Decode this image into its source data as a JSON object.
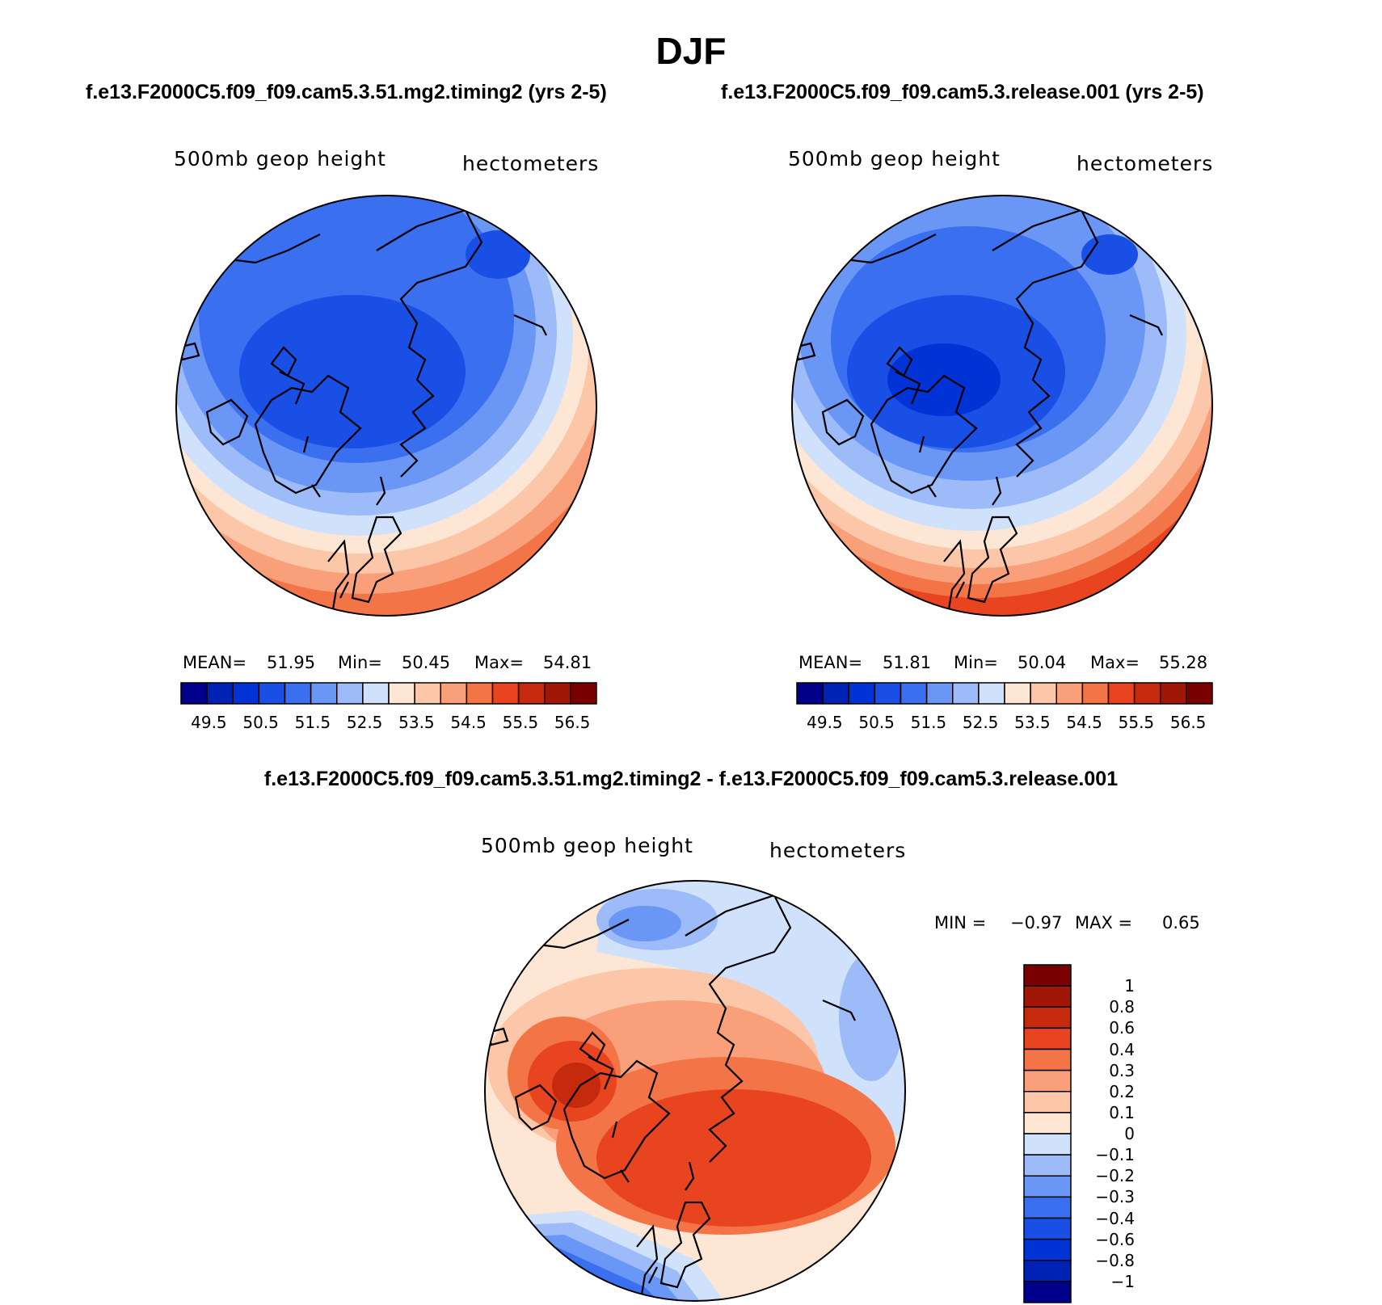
{
  "title": "DJF",
  "panel_left": {
    "case_title": "f.e13.F2000C5.f09_f09.cam5.3.51.mg2.timing2 (yrs 2-5)",
    "variable": "500mb geop height",
    "units": "hectometers",
    "mean_label": "MEAN=",
    "mean_value": "51.95",
    "min_label": "Min=",
    "min_value": "50.45",
    "max_label": "Max=",
    "max_value": "54.81"
  },
  "panel_right": {
    "case_title": "f.e13.F2000C5.f09_f09.cam5.3.release.001 (yrs 2-5)",
    "variable": "500mb geop height",
    "units": "hectometers",
    "mean_label": "MEAN=",
    "mean_value": "51.81",
    "min_label": "Min=",
    "min_value": "50.04",
    "max_label": "Max=",
    "max_value": "55.28"
  },
  "panel_diff": {
    "case_title": "f.e13.F2000C5.f09_f09.cam5.3.51.mg2.timing2 - f.e13.F2000C5.f09_f09.cam5.3.release.001",
    "variable": "500mb geop height",
    "units": "hectometers",
    "min_label": "MIN =",
    "min_value": "−0.97",
    "max_label": "MAX =",
    "max_value": "0.65"
  },
  "colorbar_abs": {
    "tick_labels": [
      "49.5",
      "50.5",
      "51.5",
      "52.5",
      "53.5",
      "54.5",
      "55.5",
      "56.5"
    ],
    "colors": [
      "#00008b",
      "#0022b4",
      "#0033d6",
      "#1a4fe6",
      "#3a6fef",
      "#6a96f5",
      "#9dbbf8",
      "#cfe1fb",
      "#fde6d4",
      "#fcc6a8",
      "#f9a07a",
      "#f37447",
      "#e7441f",
      "#c52a0d",
      "#a01708",
      "#7a0000"
    ]
  },
  "colorbar_diff": {
    "tick_labels": [
      "1",
      "0.8",
      "0.6",
      "0.4",
      "0.3",
      "0.2",
      "0.1",
      "0",
      "−0.1",
      "−0.2",
      "−0.3",
      "−0.4",
      "−0.6",
      "−0.8",
      "−1"
    ],
    "colors": [
      "#7a0000",
      "#a01708",
      "#c52a0d",
      "#e7441f",
      "#f37447",
      "#f9a07a",
      "#fcc6a8",
      "#fde6d4",
      "#cfe1fb",
      "#9dbbf8",
      "#6a96f5",
      "#3a6fef",
      "#1a4fe6",
      "#0033d6",
      "#0022b4",
      "#00008b"
    ]
  }
}
